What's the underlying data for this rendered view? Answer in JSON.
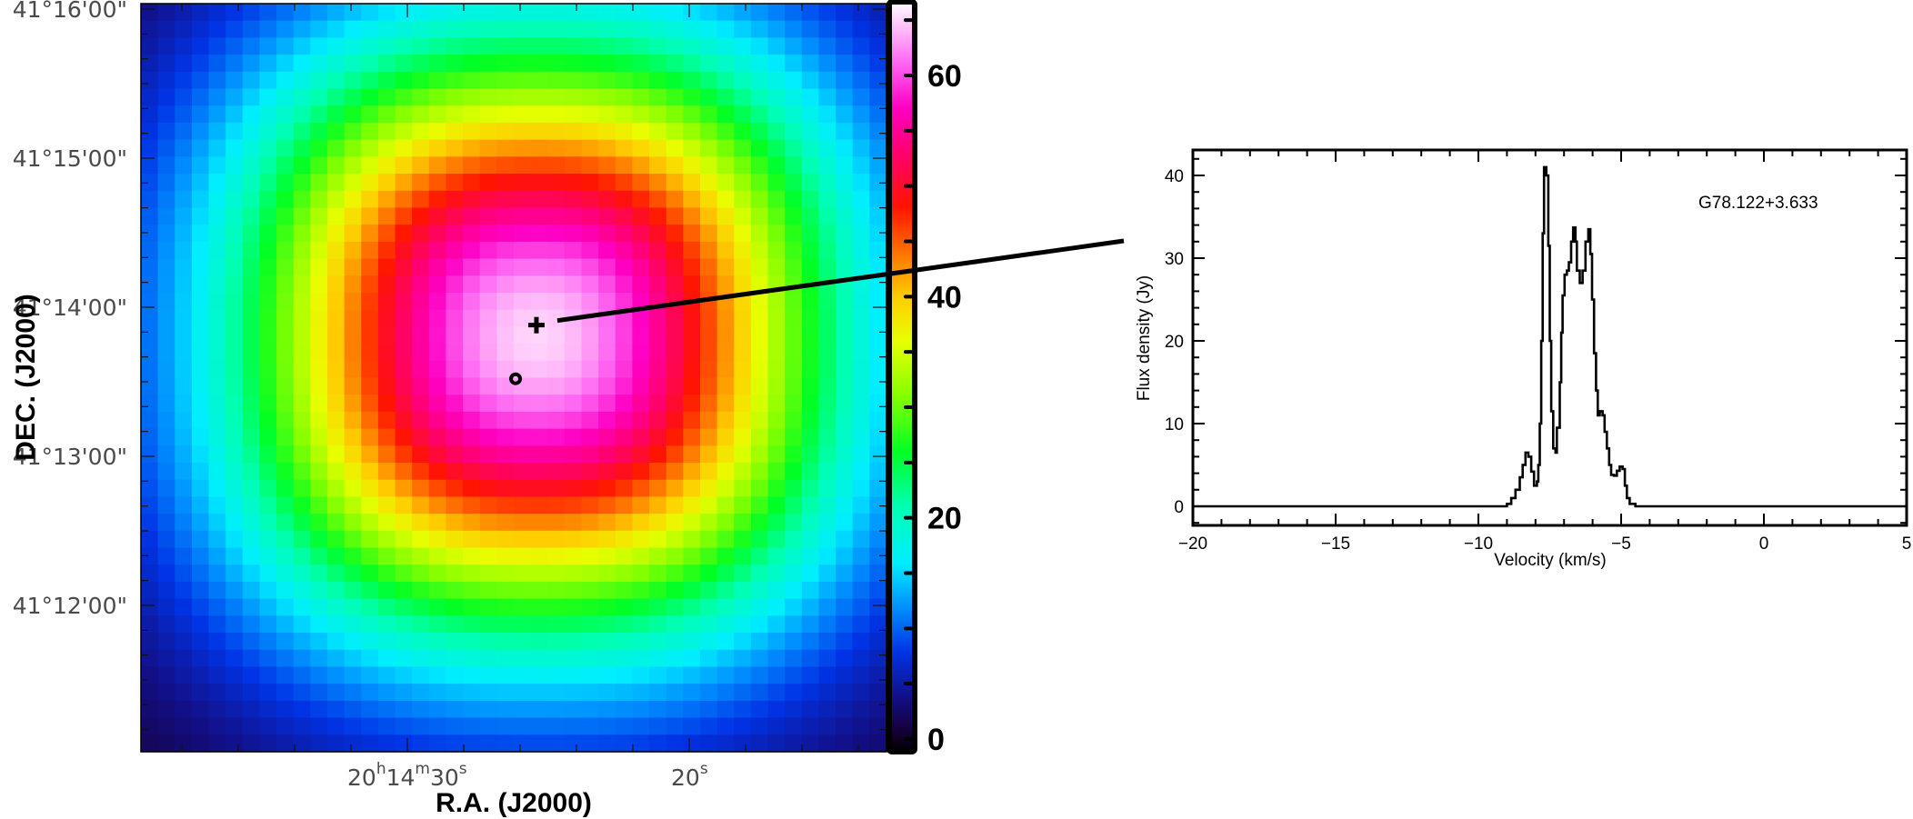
{
  "chart_data": [
    {
      "type": "heatmap",
      "xlabel": "R.A. (J2000)",
      "ylabel": "DEC. (J2000)",
      "x_ticks": [
        {
          "seconds": 30,
          "parts": [
            "20",
            "h",
            "14",
            "m",
            "30",
            "s"
          ]
        },
        {
          "seconds": 20,
          "parts": [
            "20",
            "s"
          ]
        }
      ],
      "x_range_seconds": [
        39.5,
        13.0
      ],
      "y_ticks": [
        {
          "arcmin": 16,
          "label": "41°16'00\""
        },
        {
          "arcmin": 15,
          "label": "41°15'00\""
        },
        {
          "arcmin": 14,
          "label": "41°14'00\""
        },
        {
          "arcmin": 13,
          "label": "41°13'00\""
        },
        {
          "arcmin": 12,
          "label": "41°12'00\""
        }
      ],
      "y_range_arcmin": [
        11.02,
        16.04
      ],
      "peak": {
        "value": 65,
        "ra_seconds": 25.4,
        "dec_arcmin": 13.8
      },
      "colorbar": {
        "range": [
          -1,
          66.5
        ],
        "ticks": [
          {
            "value": 0,
            "label": "0"
          },
          {
            "value": 20,
            "label": "20"
          },
          {
            "value": 40,
            "label": "40"
          },
          {
            "value": 60,
            "label": "60"
          }
        ],
        "colormap": [
          [
            -1,
            "#000000"
          ],
          [
            1,
            "#16003c"
          ],
          [
            4,
            "#12108a"
          ],
          [
            8,
            "#0034e6"
          ],
          [
            12,
            "#0090ff"
          ],
          [
            16,
            "#00eeff"
          ],
          [
            21,
            "#00ffb4"
          ],
          [
            26,
            "#00ff24"
          ],
          [
            31,
            "#84ff00"
          ],
          [
            36,
            "#e8ff00"
          ],
          [
            40,
            "#ffcc00"
          ],
          [
            44,
            "#ff7000"
          ],
          [
            48,
            "#ff1400"
          ],
          [
            53,
            "#ff0070"
          ],
          [
            57,
            "#ff00c4"
          ],
          [
            61,
            "#ff66f2"
          ],
          [
            66.5,
            "#ffffff"
          ]
        ]
      },
      "markers": [
        {
          "symbol": "plus",
          "ra_seconds": 25.42,
          "dec_arcmin": 13.88
        },
        {
          "symbol": "circle",
          "ra_seconds": 26.16,
          "dec_arcmin": 13.52
        }
      ]
    },
    {
      "type": "line",
      "annotation": "G78.122+3.633",
      "xlabel": "Velocity (km/s)",
      "ylabel": "Flux density (Jy)",
      "xlim": [
        -20,
        5
      ],
      "ylim": [
        -2.3,
        43.1
      ],
      "x_ticks": [
        -20,
        -15,
        -10,
        -5,
        0,
        5
      ],
      "x_tick_labels": [
        "−20",
        "−15",
        "−10",
        "−5",
        "0",
        "5"
      ],
      "y_ticks": [
        0,
        10,
        20,
        30,
        40
      ],
      "y_tick_labels": [
        "0",
        "10",
        "20",
        "30",
        "40"
      ],
      "drawstyle": "steps",
      "x": [
        -20,
        -9.2,
        -9.0,
        -8.85,
        -8.7,
        -8.55,
        -8.45,
        -8.35,
        -8.25,
        -8.15,
        -8.05,
        -7.95,
        -7.9,
        -7.85,
        -7.8,
        -7.75,
        -7.7,
        -7.62,
        -7.55,
        -7.5,
        -7.45,
        -7.38,
        -7.3,
        -7.25,
        -7.15,
        -7.1,
        -7.05,
        -6.98,
        -6.9,
        -6.83,
        -6.75,
        -6.68,
        -6.6,
        -6.55,
        -6.45,
        -6.35,
        -6.25,
        -6.15,
        -6.08,
        -6.02,
        -5.95,
        -5.88,
        -5.82,
        -5.75,
        -5.65,
        -5.58,
        -5.5,
        -5.42,
        -5.35,
        -5.25,
        -5.15,
        -5.05,
        -4.95,
        -4.87,
        -4.8,
        -4.7,
        -4.5,
        5
      ],
      "y": [
        0,
        0,
        0.3,
        1,
        2,
        3.5,
        5,
        6.5,
        6,
        4.2,
        2.5,
        3,
        5,
        10,
        20,
        33,
        41,
        40,
        31.5,
        20,
        11.5,
        7,
        6.5,
        9.5,
        15,
        21,
        25.5,
        28,
        28.5,
        29.5,
        32,
        33.7,
        32,
        28.5,
        27,
        28.5,
        32,
        33.5,
        30.5,
        25,
        18.5,
        14,
        11,
        11.5,
        11,
        9,
        7,
        5,
        3.8,
        3.7,
        4.3,
        4.8,
        4.5,
        2.5,
        1,
        0.3,
        0,
        0
      ]
    }
  ]
}
